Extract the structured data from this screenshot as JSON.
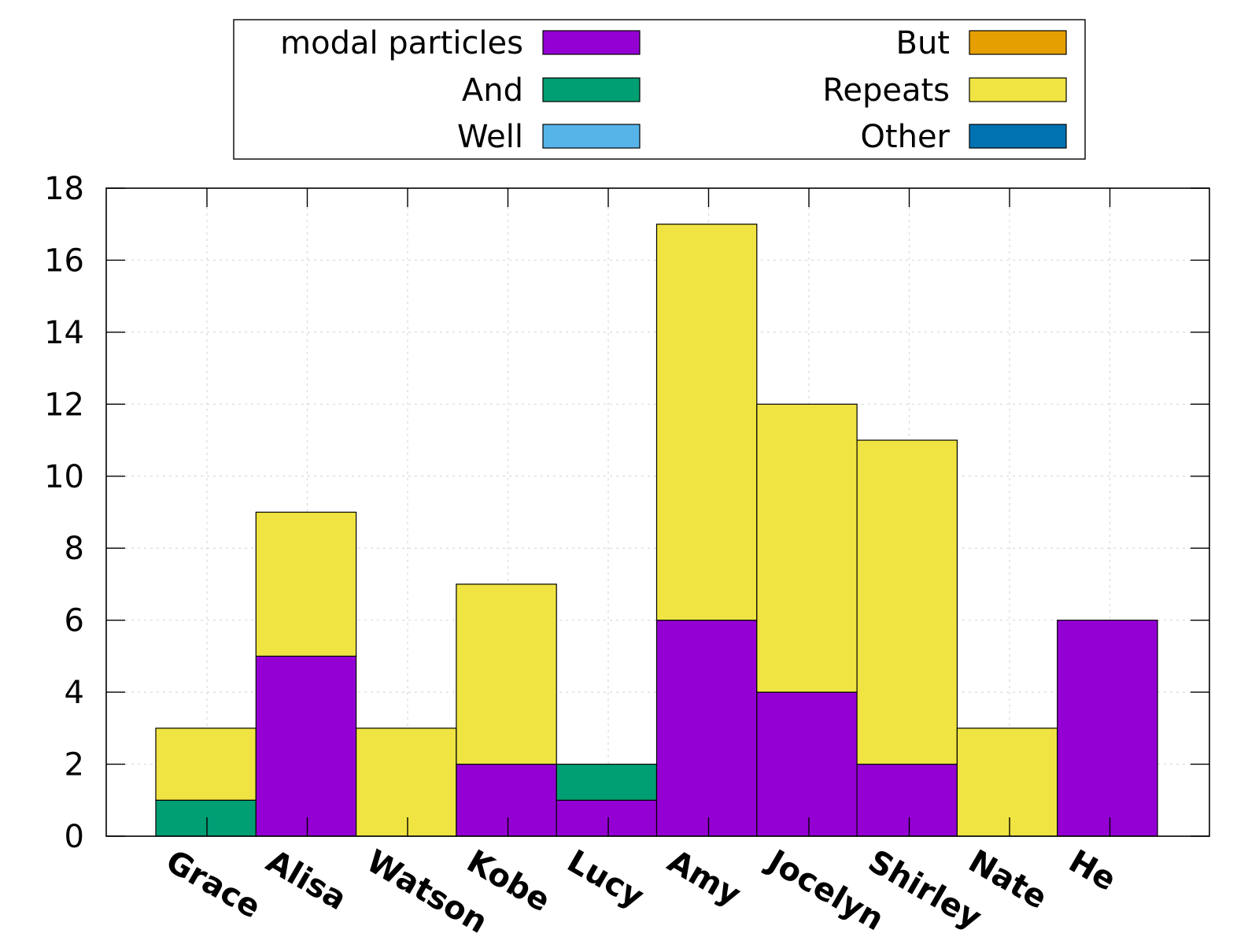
{
  "chart_data": {
    "type": "bar",
    "stacked": true,
    "categories": [
      "Grace",
      "Alisa",
      "Watson",
      "Kobe",
      "Lucy",
      "Amy",
      "Jocelyn",
      "Shirley",
      "Nate",
      "He"
    ],
    "series": [
      {
        "name": "modal particles",
        "color": "#9400d3",
        "values": [
          0,
          5,
          0,
          2,
          1,
          6,
          4,
          2,
          0,
          6
        ]
      },
      {
        "name": "And",
        "color": "#009e73",
        "values": [
          1,
          0,
          0,
          0,
          1,
          0,
          0,
          0,
          0,
          0
        ]
      },
      {
        "name": "Well",
        "color": "#56b4e9",
        "values": [
          0,
          0,
          0,
          0,
          0,
          0,
          0,
          0,
          0,
          0
        ]
      },
      {
        "name": "But",
        "color": "#e69f00",
        "values": [
          0,
          0,
          0,
          0,
          0,
          0,
          0,
          0,
          0,
          0
        ]
      },
      {
        "name": "Repeats",
        "color": "#f0e442",
        "values": [
          2,
          4,
          3,
          5,
          0,
          11,
          8,
          9,
          3,
          0
        ]
      },
      {
        "name": "Other",
        "color": "#0072b2",
        "values": [
          0,
          0,
          0,
          0,
          0,
          0,
          0,
          0,
          0,
          0
        ]
      }
    ],
    "ylim": [
      0,
      18
    ],
    "yticks": [
      "0",
      "2",
      "4",
      "6",
      "8",
      "10",
      "12",
      "14",
      "16",
      "18"
    ],
    "title": "",
    "xlabel": "",
    "ylabel": "",
    "grid": true,
    "legend_position": "top",
    "legend_columns": 2
  }
}
